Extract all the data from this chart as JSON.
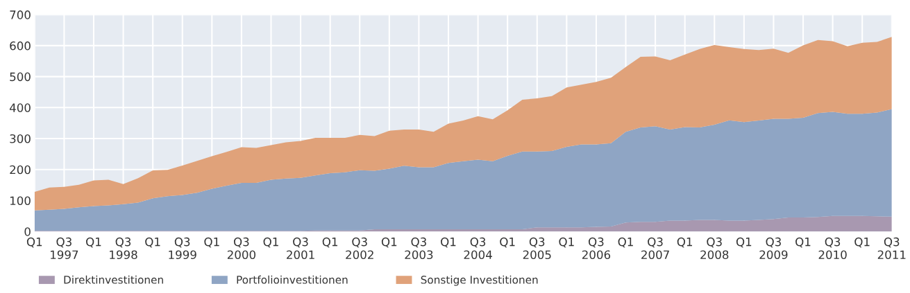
{
  "chart_data": {
    "type": "area",
    "stacked": true,
    "categories": [
      "Q1",
      null,
      "Q3\n1997",
      null,
      "Q1",
      null,
      "Q3\n1998",
      null,
      "Q1",
      null,
      "Q3\n1999",
      null,
      "Q1",
      null,
      "Q3\n2000",
      null,
      "Q1",
      null,
      "Q3\n2001",
      null,
      "Q1",
      null,
      "Q3\n2002",
      null,
      "Q1",
      null,
      "Q3\n2003",
      null,
      "Q1",
      null,
      "Q3\n2004",
      null,
      "Q1",
      null,
      "Q3\n2005",
      null,
      "Q1",
      null,
      "Q3\n2006",
      null,
      "Q1",
      null,
      "Q3\n2007",
      null,
      "Q1",
      null,
      "Q3\n2008",
      null,
      "Q1",
      null,
      "Q3\n2009",
      null,
      "Q1",
      null,
      "Q3\n2010",
      null,
      "Q1",
      null,
      "Q3\n2011"
    ],
    "series": [
      {
        "name": "Direktinvestitionen",
        "color": "#a898b0",
        "values": [
          2,
          2,
          2,
          2,
          2,
          2,
          2,
          2,
          2,
          2,
          2,
          2,
          2,
          2,
          2,
          2,
          2,
          2,
          2,
          3,
          3,
          3,
          3,
          7,
          7,
          7,
          7,
          7,
          7,
          7,
          7,
          7,
          7,
          7,
          13,
          13,
          13,
          13,
          15,
          16,
          29,
          31,
          31,
          35,
          35,
          37,
          37,
          35,
          35,
          37,
          40,
          45,
          45,
          47,
          50,
          50,
          50,
          49,
          48
        ]
      },
      {
        "name": "Portfolioinvestitionen",
        "color": "#8fa5c4",
        "values": [
          66,
          68,
          71,
          76,
          80,
          82,
          86,
          91,
          105,
          112,
          116,
          123,
          136,
          146,
          155,
          155,
          165,
          169,
          171,
          178,
          185,
          188,
          195,
          189,
          196,
          205,
          200,
          200,
          214,
          220,
          225,
          220,
          237,
          251,
          245,
          247,
          260,
          268,
          266,
          269,
          293,
          305,
          309,
          294,
          302,
          299,
          308,
          324,
          318,
          321,
          324,
          319,
          322,
          335,
          336,
          330,
          330,
          335,
          347
        ]
      },
      {
        "name": "Sonstige Investitionen",
        "color": "#e0a27a",
        "values": [
          60,
          72,
          71,
          73,
          83,
          83,
          65,
          79,
          90,
          85,
          95,
          103,
          105,
          109,
          115,
          113,
          112,
          117,
          119,
          121,
          114,
          111,
          114,
          112,
          122,
          117,
          122,
          115,
          127,
          131,
          140,
          135,
          147,
          167,
          172,
          177,
          192,
          193,
          202,
          211,
          209,
          228,
          225,
          224,
          234,
          253,
          257,
          236,
          236,
          228,
          226,
          213,
          234,
          236,
          228,
          218,
          229,
          228,
          233
        ]
      }
    ],
    "ylim": [
      0,
      700
    ],
    "yticks": [
      0,
      100,
      200,
      300,
      400,
      500,
      600,
      700
    ],
    "grid": true,
    "legend": "bottom"
  }
}
